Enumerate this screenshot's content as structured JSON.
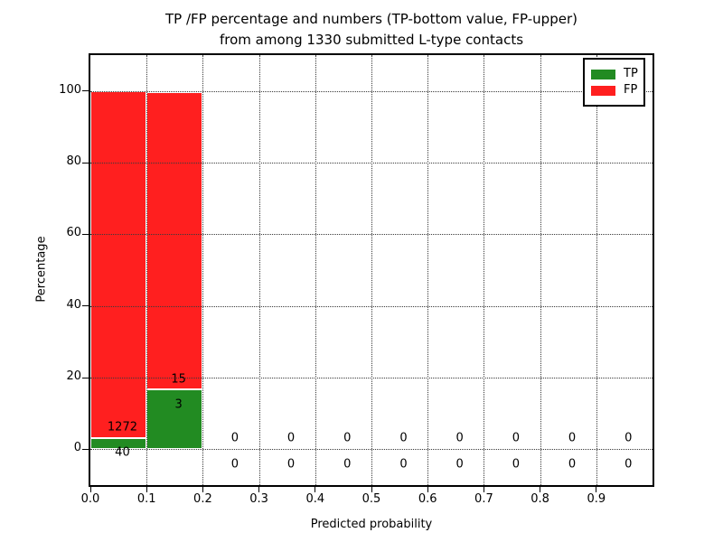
{
  "figure": {
    "title_line1": "TP /FP percentage and numbers (TP-bottom value, FP-upper)",
    "title_line2": "from among 1330 submitted L-type contacts"
  },
  "chart_data": {
    "type": "bar",
    "stacked": true,
    "title": "TP /FP percentage and numbers (TP-bottom value, FP-upper)\nfrom among 1330 submitted L-type contacts",
    "xlabel": "Predicted probability",
    "ylabel": "Percentage",
    "total_submitted_contacts": 1330,
    "xlim": [
      0.0,
      1.0
    ],
    "ylim": [
      -10,
      110
    ],
    "grid": "dotted",
    "colors": {
      "tp": "#228B22",
      "fp": "#FF1F1F",
      "grid": "#3a3a3a",
      "text": "#000000"
    },
    "legend": {
      "position": "upper right",
      "entries": [
        {
          "key": "tp",
          "label": "TP",
          "color": "#228B22"
        },
        {
          "key": "fp",
          "label": "FP",
          "color": "#FF1F1F"
        }
      ]
    },
    "xticks": [
      {
        "value": 0.0,
        "label": "0.0"
      },
      {
        "value": 0.1,
        "label": "0.1"
      },
      {
        "value": 0.2,
        "label": "0.2"
      },
      {
        "value": 0.3,
        "label": "0.3"
      },
      {
        "value": 0.4,
        "label": "0.4"
      },
      {
        "value": 0.5,
        "label": "0.5"
      },
      {
        "value": 0.6,
        "label": "0.6"
      },
      {
        "value": 0.7,
        "label": "0.7"
      },
      {
        "value": 0.8,
        "label": "0.8"
      },
      {
        "value": 0.9,
        "label": "0.9"
      }
    ],
    "yticks": [
      {
        "value": 0,
        "label": "0"
      },
      {
        "value": 20,
        "label": "20"
      },
      {
        "value": 40,
        "label": "40"
      },
      {
        "value": 60,
        "label": "60"
      },
      {
        "value": 80,
        "label": "80"
      },
      {
        "value": 100,
        "label": "100"
      }
    ],
    "label_x_offset": 0.007,
    "bins": [
      {
        "x0": 0.0,
        "x1": 0.1,
        "tp_count": 40,
        "fp_count": 1272,
        "tp_pct": 3.05,
        "fp_pct": 96.95,
        "fp_label_y": 6.1,
        "tp_label_y": -1.0
      },
      {
        "x0": 0.1,
        "x1": 0.2,
        "tp_count": 3,
        "fp_count": 15,
        "tp_pct": 16.7,
        "fp_pct": 83.0,
        "fp_label_y": 19.5,
        "tp_label_y": 12.4
      },
      {
        "x0": 0.2,
        "x1": 0.3,
        "tp_count": 0,
        "fp_count": 0,
        "tp_pct": 0,
        "fp_pct": 0,
        "fp_label_y": 3.1,
        "tp_label_y": -4.3
      },
      {
        "x0": 0.3,
        "x1": 0.4,
        "tp_count": 0,
        "fp_count": 0,
        "tp_pct": 0,
        "fp_pct": 0,
        "fp_label_y": 3.1,
        "tp_label_y": -4.3
      },
      {
        "x0": 0.4,
        "x1": 0.5,
        "tp_count": 0,
        "fp_count": 0,
        "tp_pct": 0,
        "fp_pct": 0,
        "fp_label_y": 3.1,
        "tp_label_y": -4.3
      },
      {
        "x0": 0.5,
        "x1": 0.6,
        "tp_count": 0,
        "fp_count": 0,
        "tp_pct": 0,
        "fp_pct": 0,
        "fp_label_y": 3.1,
        "tp_label_y": -4.3
      },
      {
        "x0": 0.6,
        "x1": 0.7,
        "tp_count": 0,
        "fp_count": 0,
        "tp_pct": 0,
        "fp_pct": 0,
        "fp_label_y": 3.1,
        "tp_label_y": -4.3
      },
      {
        "x0": 0.7,
        "x1": 0.8,
        "tp_count": 0,
        "fp_count": 0,
        "tp_pct": 0,
        "fp_pct": 0,
        "fp_label_y": 3.1,
        "tp_label_y": -4.3
      },
      {
        "x0": 0.8,
        "x1": 0.9,
        "tp_count": 0,
        "fp_count": 0,
        "tp_pct": 0,
        "fp_pct": 0,
        "fp_label_y": 3.1,
        "tp_label_y": -4.3
      },
      {
        "x0": 0.9,
        "x1": 1.0,
        "tp_count": 0,
        "fp_count": 0,
        "tp_pct": 0,
        "fp_pct": 0,
        "fp_label_y": 3.1,
        "tp_label_y": -4.3
      }
    ]
  }
}
